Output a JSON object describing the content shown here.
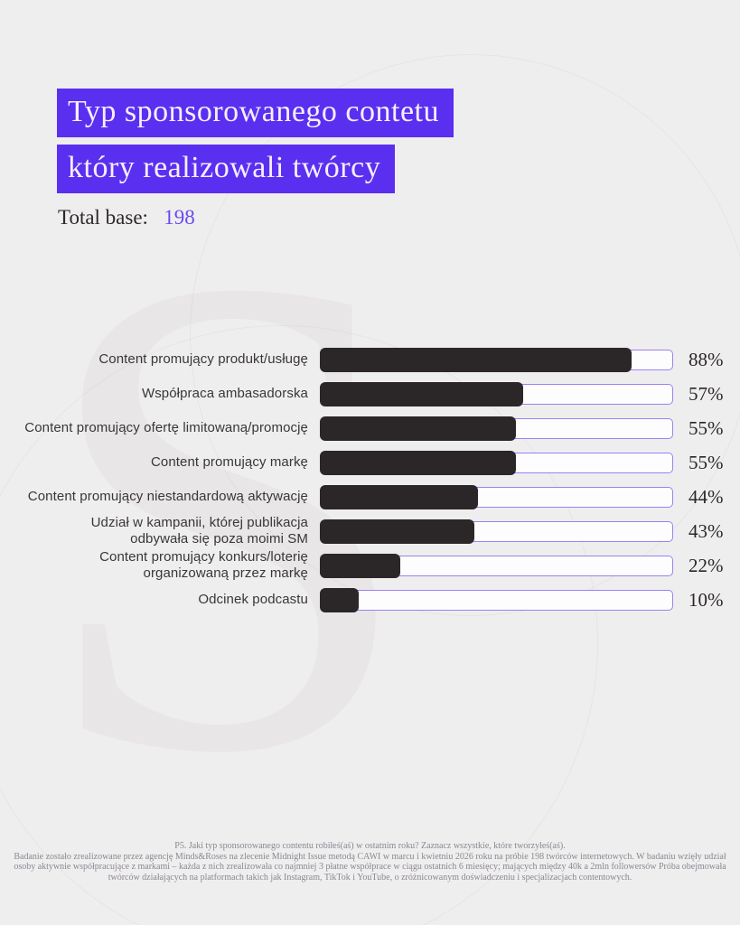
{
  "page": {
    "background_color": "#efeeee",
    "accent_color": "#5b2ff0",
    "bar_fill_color": "#2b2728",
    "bar_border_color": "#9d80f3",
    "watermark_letter": "S"
  },
  "header": {
    "title_line1": "Typ sponsorowanego contetu",
    "title_line2": "który realizowali twórcy",
    "total_base_label": "Total base:",
    "total_base_value": "198"
  },
  "chart_data": {
    "type": "bar",
    "orientation": "horizontal",
    "unit": "%",
    "xlim": [
      0,
      100
    ],
    "grid": false,
    "legend": false,
    "categories": [
      "Content promujący produkt/usługę",
      "Współpraca ambasadorska",
      "Content promujący ofertę limitowaną/promocję",
      "Content promujący markę",
      "Content promujący niestandardową aktywację",
      "Udział w kampanii, której publikacja\nodbywała się poza moimi SM",
      "Content promujący konkurs/loterię\norganizowaną przez markę",
      "Odcinek podcastu"
    ],
    "values": [
      88,
      57,
      55,
      55,
      44,
      43,
      22,
      10
    ]
  },
  "footer": {
    "question": "P5. Jaki typ sponsorowanego contentu robiłeś(aś) w ostatnim roku? Zaznacz wszystkie, które tworzyłeś(aś).",
    "methodology": "Badanie zostało zrealizowane przez agencję Minds&Roses na zlecenie Midnight Issue metodą CAWI w marcu i kwietniu 2026 roku na próbie 198 twórców internetowych. W badaniu wzięły udział osoby aktywnie współpracujące z markami – każda z nich zrealizowała co najmniej 3 płatne współprace w ciągu ostatnich 6 miesięcy; mających między 40k a 2mln followersów Próba obejmowała twórców działających na platformach takich jak Instagram, TikTok i YouTube, o zróżnicowanym doświadczeniu i specjalizacjach contentowych."
  }
}
